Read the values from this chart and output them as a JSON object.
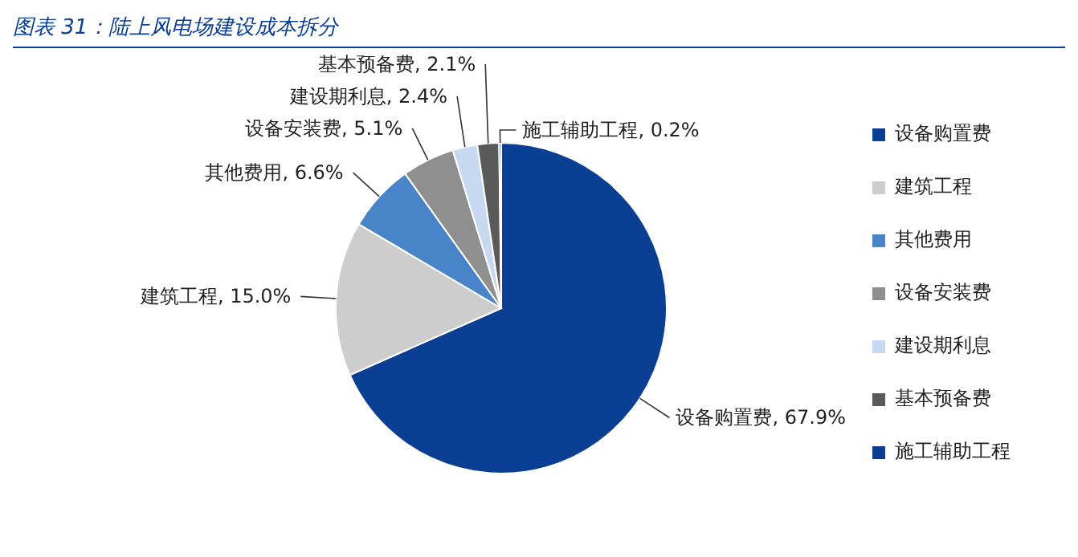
{
  "chart_data": {
    "type": "pie",
    "title": "图表 31：陆上风电场建设成本拆分",
    "categories": [
      "设备购置费",
      "建筑工程",
      "其他费用",
      "设备安装费",
      "建设期利息",
      "基本预备费",
      "施工辅助工程"
    ],
    "values": [
      67.9,
      15.0,
      6.6,
      5.1,
      2.4,
      2.1,
      0.2
    ],
    "value_labels": [
      "设备购置费, 67.9%",
      "建筑工程, 15.0%",
      "其他费用, 6.6%",
      "设备安装费, 5.1%",
      "建设期利息, 2.4%",
      "基本预备费, 2.1%",
      "施工辅助工程, 0.2%"
    ],
    "colors": [
      "#0b3f94",
      "#cdcdcd",
      "#4a84c8",
      "#8f8f8f",
      "#c6d9f0",
      "#5a5a5a",
      "#0b3f94"
    ],
    "legend": "right"
  }
}
